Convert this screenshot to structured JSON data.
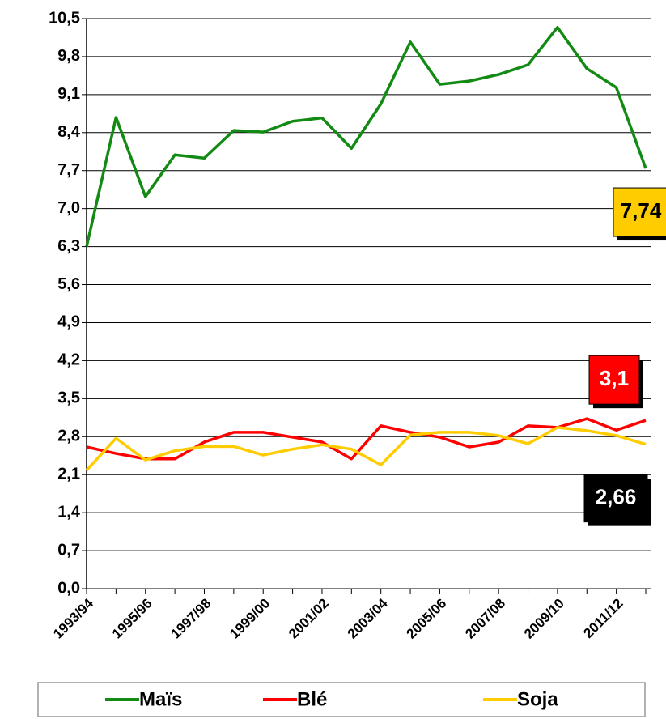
{
  "chart_data": {
    "type": "line",
    "categories": [
      "1993/94",
      null,
      "1995/96",
      null,
      "1997/98",
      null,
      "1999/00",
      null,
      "2001/02",
      null,
      "2003/04",
      null,
      "2005/06",
      null,
      "2007/08",
      null,
      "2009/10",
      null,
      "2011/12",
      null
    ],
    "series": [
      {
        "name": "Maïs",
        "color": "#138a13",
        "label_color": "#ffcc00",
        "label_text_color": "#000000",
        "values": [
          6.3,
          8.68,
          7.22,
          7.99,
          7.93,
          8.44,
          8.41,
          8.61,
          8.67,
          8.11,
          8.93,
          10.07,
          9.29,
          9.35,
          9.47,
          9.65,
          10.34,
          9.58,
          9.23,
          7.74
        ],
        "value_labels": [
          null,
          null,
          null,
          null,
          null,
          null,
          null,
          null,
          null,
          null,
          null,
          null,
          null,
          null,
          null,
          null,
          null,
          null,
          null,
          "7,74"
        ]
      },
      {
        "name": "Blé",
        "color": "#ff0000",
        "label_color": "#ff0000",
        "label_text_color": "#ffffff",
        "values": [
          2.61,
          2.49,
          2.39,
          2.39,
          2.7,
          2.88,
          2.88,
          2.79,
          2.7,
          2.39,
          3.0,
          2.88,
          2.79,
          2.61,
          2.7,
          3.0,
          2.97,
          3.13,
          2.92,
          3.1
        ],
        "value_labels": [
          null,
          null,
          null,
          null,
          null,
          null,
          null,
          null,
          null,
          null,
          null,
          null,
          null,
          null,
          null,
          null,
          null,
          null,
          null,
          "3,1"
        ]
      },
      {
        "name": "Soja",
        "color": "#ffcc00",
        "label_color": "#000000",
        "label_text_color": "#ffffff",
        "values": [
          2.18,
          2.77,
          2.37,
          2.54,
          2.62,
          2.62,
          2.46,
          2.57,
          2.65,
          2.57,
          2.28,
          2.83,
          2.88,
          2.88,
          2.82,
          2.67,
          2.97,
          2.91,
          2.82,
          2.66
        ],
        "value_labels": [
          null,
          null,
          null,
          null,
          null,
          null,
          null,
          null,
          null,
          null,
          null,
          null,
          null,
          null,
          null,
          null,
          null,
          null,
          null,
          "2,66"
        ]
      }
    ],
    "ylim": [
      0,
      10.5
    ],
    "yticks": [
      {
        "value": 0,
        "label": "0,0"
      },
      {
        "value": 0.7,
        "label": "0,7"
      },
      {
        "value": 1.4,
        "label": "1,4"
      },
      {
        "value": 2.1,
        "label": "2,1"
      },
      {
        "value": 2.8,
        "label": "2,8"
      },
      {
        "value": 3.5,
        "label": "3,5"
      },
      {
        "value": 4.2,
        "label": "4,2"
      },
      {
        "value": 4.9,
        "label": "4,9"
      },
      {
        "value": 5.6,
        "label": "5,6"
      },
      {
        "value": 6.3,
        "label": "6,3"
      },
      {
        "value": 7.0,
        "label": "7,0"
      },
      {
        "value": 7.7,
        "label": "7,7"
      },
      {
        "value": 8.4,
        "label": "8,4"
      },
      {
        "value": 9.1,
        "label": "9,1"
      },
      {
        "value": 9.8,
        "label": "9,8"
      },
      {
        "value": 10.5,
        "label": "10,5"
      }
    ],
    "grid": true,
    "legend": "bottom"
  }
}
